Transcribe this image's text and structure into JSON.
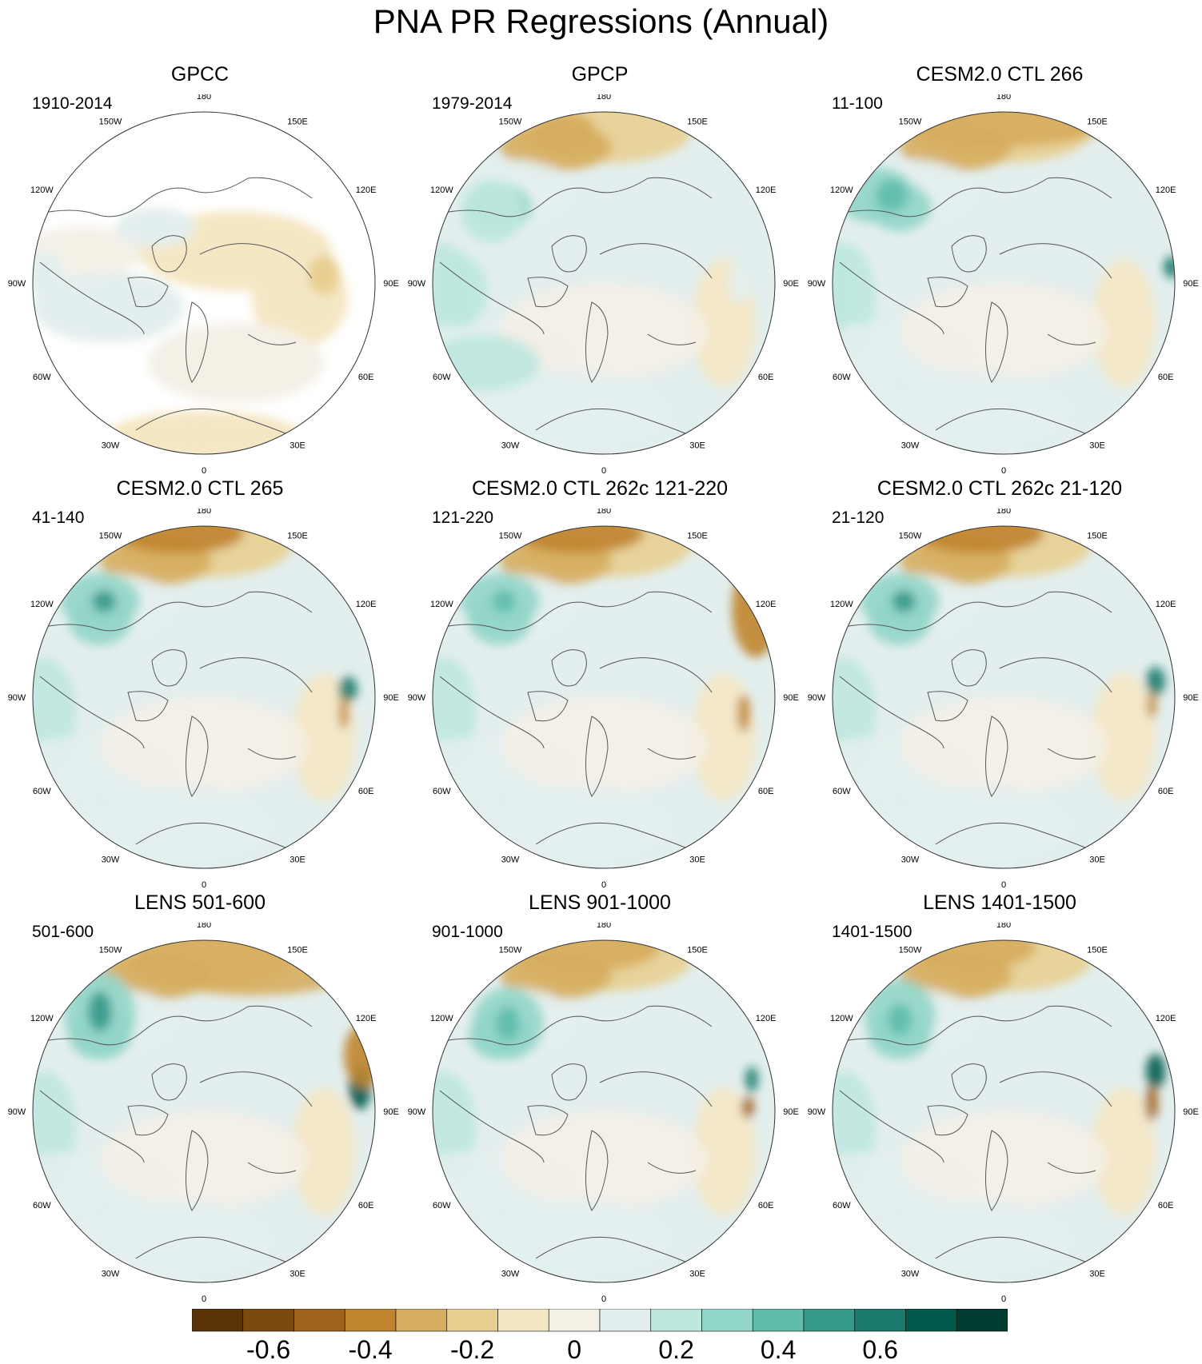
{
  "figure": {
    "title": "PNA PR Regressions (Annual)"
  },
  "panels": [
    {
      "title": "GPCC",
      "period": "1910-2014",
      "type": "observed"
    },
    {
      "title": "GPCP",
      "period": "1979-2014",
      "type": "observed"
    },
    {
      "title": "CESM2.0 CTL 266",
      "period": "11-100",
      "type": "model"
    },
    {
      "title": "CESM2.0 CTL 265",
      "period": "41-140",
      "type": "model"
    },
    {
      "title": "CESM2.0 CTL 262c 121-220",
      "period": "121-220",
      "type": "model"
    },
    {
      "title": "CESM2.0 CTL 262c 21-120",
      "period": "21-120",
      "type": "model"
    },
    {
      "title": "LENS 501-600",
      "period": "501-600",
      "type": "model"
    },
    {
      "title": "LENS 901-1000",
      "period": "901-1000",
      "type": "model"
    },
    {
      "title": "LENS 1401-1500",
      "period": "1401-1500",
      "type": "model"
    }
  ],
  "longitude_labels": [
    "180",
    "150E",
    "120E",
    "90E",
    "60E",
    "30E",
    "0",
    "30W",
    "60W",
    "90W",
    "120W",
    "150W"
  ],
  "colorbar": {
    "tick_labels": [
      "-0.6",
      "-0.4",
      "-0.2",
      "0",
      "0.2",
      "0.4",
      "0.6"
    ],
    "colors": [
      "#5a3407",
      "#7d4a0e",
      "#a0621a",
      "#c0842f",
      "#d6ad5e",
      "#e8cf91",
      "#f5e7c4",
      "#f4f0e6",
      "#e3efee",
      "#bee7df",
      "#92d6c9",
      "#5fbcab",
      "#35998a",
      "#177a6c",
      "#005a4c",
      "#003b30"
    ]
  },
  "chart_data": {
    "type": "heatmap",
    "title": "PNA PR Regressions (Annual)",
    "projection": "north polar stereographic",
    "panels": [
      "GPCC",
      "GPCP",
      "CESM2.0 CTL 266",
      "CESM2.0 CTL 265",
      "CESM2.0 CTL 262c 121-220",
      "CESM2.0 CTL 262c 21-120",
      "LENS 501-600",
      "LENS 901-1000",
      "LENS 1401-1500"
    ],
    "colorbar_ticks": [
      -0.6,
      -0.4,
      -0.2,
      0,
      0.2,
      0.4,
      0.6
    ],
    "colorbar_levels": 16
  }
}
